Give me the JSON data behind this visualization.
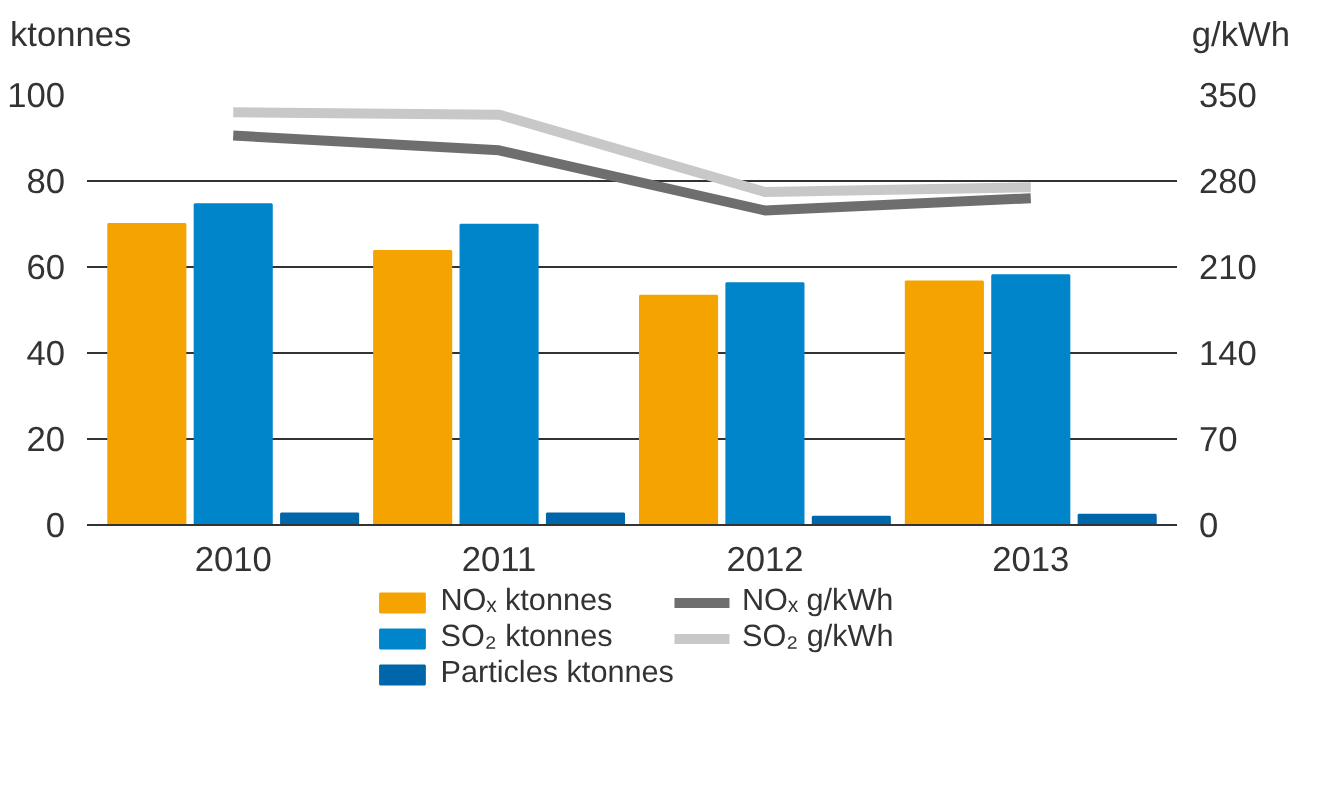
{
  "chart_data": {
    "type": "bar",
    "ylabel": "ktonnes",
    "y2label": "g/kWh",
    "categories": [
      "2010",
      "2011",
      "2012",
      "2013"
    ],
    "series": [
      {
        "name": "NOₓ ktonnes",
        "color": "#f4a300",
        "values": [
          70,
          63.7,
          53.3,
          56.6
        ]
      },
      {
        "name": "SO₂ ktonnes",
        "color": "#0085ca",
        "values": [
          74.6,
          69.8,
          56.2,
          58.1
        ]
      },
      {
        "name": "Particles ktonnes",
        "color": "#0066aa",
        "values": [
          2.7,
          2.7,
          1.9,
          2.4
        ]
      },
      {
        "name": "NOₓ g/kWh",
        "type": "line",
        "axis": "y2",
        "color": "#6e6e6e",
        "values": [
          317,
          305,
          256,
          266
        ]
      },
      {
        "name": "SO₂ g/kWh",
        "type": "line",
        "axis": "y2",
        "color": "#c8c8c8",
        "values": [
          336,
          334,
          271,
          275
        ]
      }
    ],
    "ylim": [
      0,
      100
    ],
    "yticks": [
      0,
      20,
      40,
      60,
      80,
      100
    ],
    "y2lim": [
      0,
      350
    ],
    "y2ticks": [
      0,
      70,
      140,
      210,
      280,
      350
    ],
    "grid": "y",
    "legend": "bottom"
  }
}
